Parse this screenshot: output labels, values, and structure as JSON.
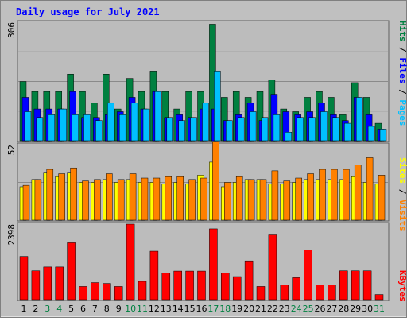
{
  "chart_data": [
    {
      "type": "bar",
      "title": "Daily usage for July 2021",
      "panel": "Hits / Files / Pages",
      "ymax": 306,
      "ylabel": "306",
      "categories": [
        "1",
        "2",
        "3",
        "4",
        "5",
        "6",
        "7",
        "8",
        "9",
        "10",
        "11",
        "12",
        "13",
        "14",
        "15",
        "16",
        "17",
        "18",
        "19",
        "20",
        "21",
        "22",
        "23",
        "24",
        "25",
        "26",
        "27",
        "28",
        "29",
        "30",
        "31"
      ],
      "weekend_days": [
        "3",
        "4",
        "10",
        "11",
        "17",
        "18",
        "24",
        "25",
        "31"
      ],
      "series": [
        {
          "name": "Hits",
          "color": "#008040",
          "values": [
            153,
            127,
            127,
            127,
            172,
            127,
            97,
            172,
            82,
            161,
            127,
            180,
            127,
            82,
            127,
            127,
            301,
            112,
            127,
            112,
            127,
            157,
            82,
            75,
            112,
            127,
            112,
            67,
            150,
            112,
            45
          ]
        },
        {
          "name": "Files",
          "color": "#0000ff",
          "values": [
            112,
            82,
            82,
            82,
            127,
            60,
            60,
            67,
            75,
            112,
            82,
            127,
            60,
            67,
            60,
            82,
            82,
            52,
            67,
            97,
            52,
            120,
            75,
            67,
            75,
            97,
            67,
            52,
            112,
            67,
            30
          ]
        },
        {
          "name": "Pages",
          "color": "#00c0ff",
          "values": [
            75,
            60,
            67,
            82,
            67,
            67,
            52,
            97,
            67,
            97,
            82,
            127,
            60,
            52,
            60,
            97,
            180,
            52,
            60,
            75,
            60,
            67,
            22,
            60,
            60,
            75,
            60,
            45,
            112,
            37,
            30
          ]
        }
      ]
    },
    {
      "type": "bar",
      "panel": "Sites / Visits",
      "ymax": 52,
      "ylabel": "52",
      "series": [
        {
          "name": "Sites",
          "color": "#ffff00",
          "values": [
            23,
            28,
            33,
            30,
            33,
            26,
            26,
            28,
            26,
            28,
            26,
            26,
            25,
            26,
            25,
            31,
            40,
            23,
            26,
            28,
            28,
            25,
            25,
            26,
            28,
            28,
            28,
            28,
            30,
            26,
            25
          ]
        },
        {
          "name": "Visits",
          "color": "#ff8000",
          "values": [
            24,
            28,
            35,
            32,
            36,
            27,
            28,
            32,
            28,
            32,
            29,
            29,
            30,
            30,
            28,
            29,
            54,
            26,
            30,
            28,
            28,
            34,
            27,
            29,
            32,
            35,
            35,
            35,
            38,
            43,
            31
          ]
        }
      ]
    },
    {
      "type": "bar",
      "panel": "KBytes",
      "ymax": 2398,
      "ylabel": "2398",
      "series": [
        {
          "name": "KBytes",
          "color": "#ff0000",
          "values": [
            1372,
            915,
            1038,
            1038,
            1807,
            418,
            541,
            515,
            418,
            2398,
            581,
            1539,
            845,
            907,
            907,
            907,
            2248,
            845,
            731,
            1232,
            418,
            2081,
            467,
            697,
            1582,
            467,
            467,
            915,
            915,
            915,
            162
          ]
        }
      ]
    }
  ]
}
